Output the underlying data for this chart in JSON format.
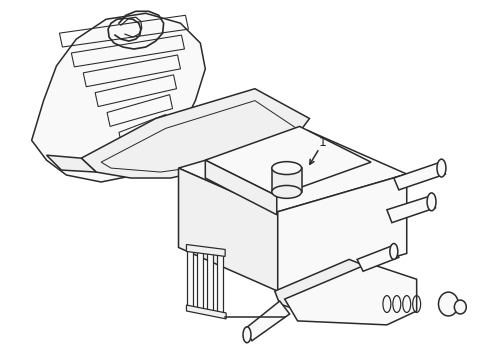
{
  "bg_color": "#ffffff",
  "line_color": "#2a2a2a",
  "line_width": 1.1,
  "label": "1",
  "fig_width": 4.89,
  "fig_height": 3.6,
  "dpi": 100
}
